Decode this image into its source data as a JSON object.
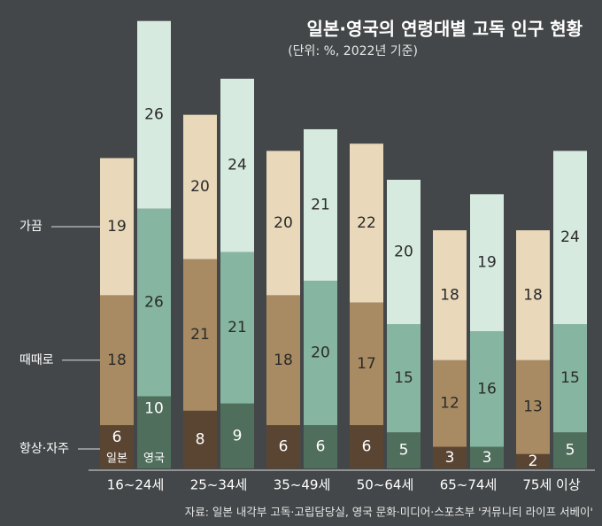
{
  "chart_data": {
    "type": "grouped_stacked_bar",
    "title": "일본·영국의 연령대별 고독 인구 현황",
    "subtitle": "(단위: %, 2022년 기준)",
    "source": "자료: 일본 내각부 고독·고립담당실, 영국 문화·미디어·스포츠부 '커뮤니티 라이프 서베이'",
    "categories": [
      "16~24세",
      "25~34세",
      "35~49세",
      "50~64세",
      "65~74세",
      "75세 이상"
    ],
    "levels": [
      "항상·자주",
      "때때로",
      "가끔"
    ],
    "groups": [
      {
        "name": "일본",
        "series": [
          {
            "color": "#5a4532",
            "values": [
              6,
              8,
              6,
              6,
              3,
              2
            ]
          },
          {
            "color": "#a98b63",
            "values": [
              18,
              21,
              18,
              17,
              12,
              13
            ]
          },
          {
            "color": "#e9d9ba",
            "values": [
              19,
              20,
              20,
              22,
              18,
              18
            ]
          }
        ]
      },
      {
        "name": "영국",
        "series": [
          {
            "color": "#4f6e5b",
            "values": [
              10,
              9,
              6,
              5,
              3,
              5
            ]
          },
          {
            "color": "#86b6a1",
            "values": [
              26,
              21,
              20,
              15,
              16,
              15
            ]
          },
          {
            "color": "#d6eae0",
            "values": [
              26,
              24,
              21,
              20,
              19,
              24
            ]
          }
        ]
      }
    ]
  }
}
